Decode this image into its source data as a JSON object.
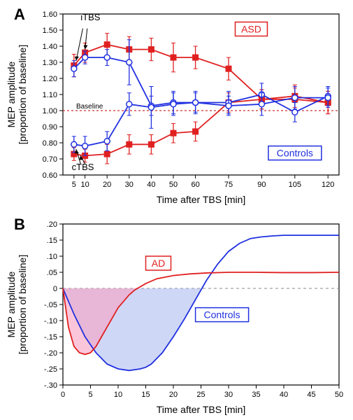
{
  "panelA": {
    "label": "A",
    "type": "line-errorbar",
    "xlabel": "Time after TBS [min]",
    "ylabel_line1": "MEP amplitude",
    "ylabel_line2": "[proportion of baseline]",
    "xlim": [
      0,
      125
    ],
    "ylim": [
      0.6,
      1.6
    ],
    "xticks": [
      5,
      10,
      20,
      30,
      40,
      50,
      60,
      75,
      90,
      105,
      120
    ],
    "yticks": [
      0.6,
      0.7,
      0.8,
      0.9,
      1.0,
      1.1,
      1.2,
      1.3,
      1.4,
      1.5,
      1.6
    ],
    "baseline_y": 1.0,
    "baseline_label": "Baseline",
    "baseline_color": "#cc3333",
    "annotations": {
      "itbs": "iTBS",
      "ctbs": "cTBS",
      "asd": "ASD",
      "controls": "Controls"
    },
    "series": {
      "asd_itbs": {
        "color": "#e02020",
        "marker": "square-filled",
        "x": [
          5,
          10,
          20,
          30,
          40,
          50,
          60,
          75,
          90,
          105,
          120
        ],
        "y": [
          1.28,
          1.36,
          1.41,
          1.38,
          1.38,
          1.33,
          1.33,
          1.26,
          1.07,
          1.07,
          1.05
        ],
        "err": [
          0.07,
          0.06,
          0.07,
          0.08,
          0.07,
          0.09,
          0.07,
          0.07,
          0.06,
          0.07,
          0.07
        ]
      },
      "asd_ctbs": {
        "color": "#e02020",
        "marker": "square-filled",
        "x": [
          5,
          10,
          20,
          30,
          40,
          50,
          60,
          75,
          90,
          105,
          120
        ],
        "y": [
          0.73,
          0.72,
          0.73,
          0.79,
          0.79,
          0.86,
          0.87,
          1.05,
          1.07,
          1.09,
          1.05
        ],
        "err": [
          0.04,
          0.04,
          0.06,
          0.06,
          0.06,
          0.06,
          0.06,
          0.06,
          0.06,
          0.07,
          0.07
        ]
      },
      "ctrl_itbs": {
        "color": "#2030e0",
        "marker": "circle-open",
        "x": [
          5,
          10,
          20,
          30,
          40,
          50,
          60,
          75,
          90,
          105,
          120
        ],
        "y": [
          1.26,
          1.33,
          1.33,
          1.3,
          1.03,
          1.05,
          1.05,
          1.05,
          1.1,
          0.99,
          1.09
        ],
        "err": [
          0.05,
          0.04,
          0.05,
          0.14,
          0.06,
          0.07,
          0.07,
          0.07,
          0.07,
          0.06,
          0.06
        ]
      },
      "ctrl_ctbs": {
        "color": "#2030e0",
        "marker": "circle-open",
        "x": [
          5,
          10,
          20,
          30,
          40,
          50,
          60,
          75,
          90,
          105,
          120
        ],
        "y": [
          0.79,
          0.78,
          0.81,
          1.04,
          1.02,
          1.04,
          1.05,
          1.03,
          1.04,
          1.08,
          1.08
        ],
        "err": [
          0.05,
          0.06,
          0.06,
          0.07,
          0.13,
          0.07,
          0.06,
          0.06,
          0.07,
          0.07,
          0.06
        ]
      }
    },
    "axis_color": "#000000",
    "tick_fontsize": 11,
    "label_fontsize": 14
  },
  "panelB": {
    "label": "B",
    "type": "line-area",
    "xlabel": "Time after TBS [min]",
    "ylabel_line1": "MEP amplitude",
    "ylabel_line2": "[proportion of baseline]",
    "xlim": [
      0,
      50
    ],
    "ylim": [
      -0.3,
      0.2
    ],
    "xticks": [
      0,
      5,
      10,
      15,
      20,
      25,
      30,
      35,
      40,
      45,
      50
    ],
    "yticks": [
      -0.3,
      -0.25,
      -0.2,
      -0.15,
      -0.1,
      -0.05,
      0,
      0.05,
      0.1,
      0.15,
      0.2
    ],
    "baseline_y": 0.0,
    "annotations": {
      "ad": "AD",
      "controls": "Controls"
    },
    "series": {
      "ad": {
        "line_color": "#e02020",
        "fill_color": "#f8a0c0",
        "fill_opacity": 0.6,
        "x": [
          0,
          1,
          2,
          3,
          4,
          5,
          6,
          7,
          8,
          9,
          10,
          11,
          12,
          13,
          14,
          15,
          17,
          20,
          23,
          26,
          30,
          35,
          40,
          45,
          50
        ],
        "y": [
          0,
          -0.12,
          -0.18,
          -0.2,
          -0.205,
          -0.2,
          -0.18,
          -0.15,
          -0.12,
          -0.09,
          -0.06,
          -0.04,
          -0.02,
          -0.005,
          0.005,
          0.015,
          0.03,
          0.04,
          0.045,
          0.048,
          0.05,
          0.05,
          0.049,
          0.049,
          0.05
        ]
      },
      "ctrl": {
        "line_color": "#2030e0",
        "fill_color": "#a0b0f0",
        "fill_opacity": 0.5,
        "x": [
          0,
          2,
          4,
          6,
          8,
          10,
          12,
          14,
          15,
          16,
          18,
          20,
          22,
          24,
          25,
          26,
          28,
          30,
          32,
          34,
          36,
          38,
          40,
          45,
          50
        ],
        "y": [
          0,
          -0.08,
          -0.15,
          -0.2,
          -0.235,
          -0.25,
          -0.255,
          -0.25,
          -0.245,
          -0.235,
          -0.2,
          -0.15,
          -0.095,
          -0.035,
          -0.005,
          0.025,
          0.075,
          0.115,
          0.14,
          0.155,
          0.16,
          0.163,
          0.165,
          0.165,
          0.165
        ]
      }
    },
    "axis_color": "#000000",
    "tick_fontsize": 11,
    "label_fontsize": 14,
    "grid_color": "#888888"
  }
}
